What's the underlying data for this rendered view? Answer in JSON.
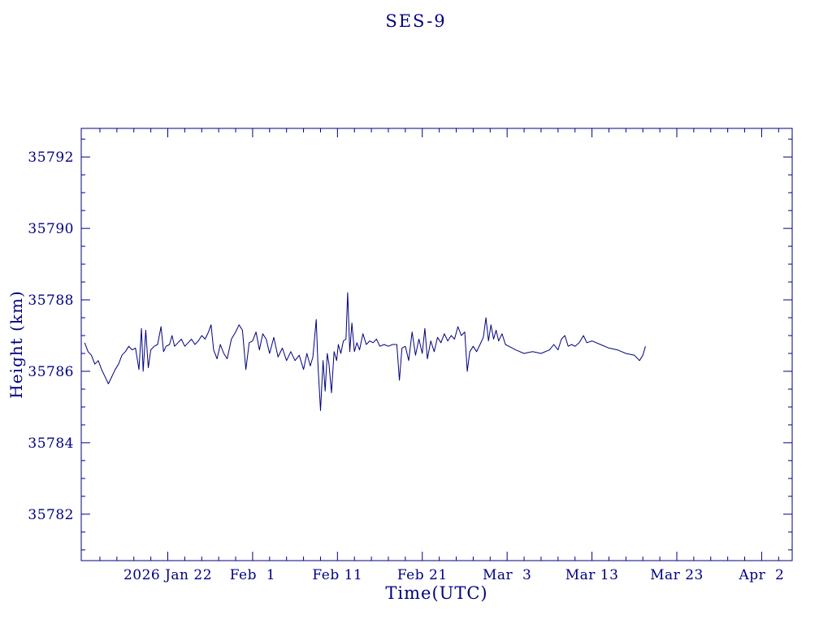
{
  "page": {
    "background": "#ffffff"
  },
  "chart_data": {
    "type": "line",
    "title": "SES-9",
    "xlabel": "Time(UTC)",
    "ylabel": "Height (km)",
    "axis_color": "#000080",
    "grid": false,
    "legend": "none",
    "x_axis_note": "x values are days; day 10 = 2026 Jan 22, major ticks every 10 days",
    "xlim": [
      -0.2,
      83.6
    ],
    "ylim": [
      35780.7,
      35792.8
    ],
    "x_minor_step": 2,
    "y_minor_step": 0.5,
    "x_ticks": [
      {
        "d": 10,
        "label": "2026 Jan 22"
      },
      {
        "d": 20,
        "label": "Feb  1"
      },
      {
        "d": 30,
        "label": "Feb 11"
      },
      {
        "d": 40,
        "label": "Feb 21"
      },
      {
        "d": 50,
        "label": "Mar  3"
      },
      {
        "d": 60,
        "label": "Mar 13"
      },
      {
        "d": 70,
        "label": "Mar 23"
      },
      {
        "d": 80,
        "label": "Apr  2"
      }
    ],
    "y_ticks": [
      {
        "v": 35782,
        "label": "35782"
      },
      {
        "v": 35784,
        "label": "35784"
      },
      {
        "v": 35786,
        "label": "35786"
      },
      {
        "v": 35788,
        "label": "35788"
      },
      {
        "v": 35790,
        "label": "35790"
      },
      {
        "v": 35792,
        "label": "35792"
      }
    ],
    "series": [
      {
        "name": "height",
        "color": "#000080",
        "points": [
          [
            0.2,
            35786.8
          ],
          [
            0.6,
            35786.55
          ],
          [
            1.0,
            35786.45
          ],
          [
            1.4,
            35786.2
          ],
          [
            1.8,
            35786.3
          ],
          [
            2.2,
            35786.05
          ],
          [
            2.6,
            35785.85
          ],
          [
            3.0,
            35785.65
          ],
          [
            3.4,
            35785.85
          ],
          [
            3.8,
            35786.05
          ],
          [
            4.2,
            35786.2
          ],
          [
            4.6,
            35786.45
          ],
          [
            5.0,
            35786.55
          ],
          [
            5.4,
            35786.7
          ],
          [
            5.8,
            35786.6
          ],
          [
            6.2,
            35786.65
          ],
          [
            6.6,
            35786.05
          ],
          [
            6.9,
            35787.2
          ],
          [
            7.1,
            35786.0
          ],
          [
            7.4,
            35787.15
          ],
          [
            7.7,
            35786.1
          ],
          [
            8.0,
            35786.6
          ],
          [
            8.4,
            35786.7
          ],
          [
            8.8,
            35786.75
          ],
          [
            9.2,
            35787.25
          ],
          [
            9.5,
            35786.55
          ],
          [
            9.8,
            35786.7
          ],
          [
            10.2,
            35786.75
          ],
          [
            10.5,
            35787.0
          ],
          [
            10.8,
            35786.7
          ],
          [
            11.2,
            35786.8
          ],
          [
            11.6,
            35786.9
          ],
          [
            12.0,
            35786.7
          ],
          [
            12.4,
            35786.8
          ],
          [
            12.8,
            35786.9
          ],
          [
            13.2,
            35786.75
          ],
          [
            13.6,
            35786.85
          ],
          [
            14.0,
            35787.0
          ],
          [
            14.4,
            35786.9
          ],
          [
            14.8,
            35787.1
          ],
          [
            15.1,
            35787.3
          ],
          [
            15.4,
            35786.6
          ],
          [
            15.8,
            35786.35
          ],
          [
            16.2,
            35786.75
          ],
          [
            16.6,
            35786.5
          ],
          [
            17.0,
            35786.35
          ],
          [
            17.5,
            35786.9
          ],
          [
            18.0,
            35787.1
          ],
          [
            18.4,
            35787.3
          ],
          [
            18.8,
            35787.15
          ],
          [
            19.2,
            35786.05
          ],
          [
            19.6,
            35786.8
          ],
          [
            20.0,
            35786.85
          ],
          [
            20.4,
            35787.1
          ],
          [
            20.8,
            35786.6
          ],
          [
            21.2,
            35787.05
          ],
          [
            21.6,
            35786.9
          ],
          [
            22.0,
            35786.5
          ],
          [
            22.5,
            35786.95
          ],
          [
            23.0,
            35786.4
          ],
          [
            23.5,
            35786.65
          ],
          [
            24.0,
            35786.3
          ],
          [
            24.5,
            35786.55
          ],
          [
            25.0,
            35786.3
          ],
          [
            25.5,
            35786.45
          ],
          [
            26.0,
            35786.05
          ],
          [
            26.4,
            35786.5
          ],
          [
            26.8,
            35786.15
          ],
          [
            27.1,
            35786.4
          ],
          [
            27.5,
            35787.45
          ],
          [
            27.7,
            35786.2
          ],
          [
            28.0,
            35784.9
          ],
          [
            28.3,
            35786.3
          ],
          [
            28.55,
            35785.45
          ],
          [
            28.8,
            35786.5
          ],
          [
            29.0,
            35786.2
          ],
          [
            29.3,
            35785.4
          ],
          [
            29.6,
            35786.55
          ],
          [
            29.9,
            35786.3
          ],
          [
            30.1,
            35786.75
          ],
          [
            30.4,
            35786.5
          ],
          [
            30.7,
            35786.85
          ],
          [
            31.0,
            35786.9
          ],
          [
            31.2,
            35788.2
          ],
          [
            31.45,
            35786.55
          ],
          [
            31.7,
            35787.35
          ],
          [
            32.0,
            35786.55
          ],
          [
            32.3,
            35786.8
          ],
          [
            32.6,
            35786.6
          ],
          [
            33.0,
            35787.05
          ],
          [
            33.4,
            35786.75
          ],
          [
            33.8,
            35786.85
          ],
          [
            34.2,
            35786.8
          ],
          [
            34.6,
            35786.9
          ],
          [
            35.0,
            35786.7
          ],
          [
            35.5,
            35786.75
          ],
          [
            36.0,
            35786.7
          ],
          [
            36.5,
            35786.75
          ],
          [
            37.0,
            35786.75
          ],
          [
            37.3,
            35785.75
          ],
          [
            37.6,
            35786.65
          ],
          [
            38.0,
            35786.7
          ],
          [
            38.4,
            35786.3
          ],
          [
            38.8,
            35787.1
          ],
          [
            39.2,
            35786.45
          ],
          [
            39.6,
            35786.9
          ],
          [
            40.0,
            35786.5
          ],
          [
            40.3,
            35787.2
          ],
          [
            40.6,
            35786.35
          ],
          [
            41.0,
            35786.85
          ],
          [
            41.4,
            35786.55
          ],
          [
            41.8,
            35786.95
          ],
          [
            42.2,
            35786.8
          ],
          [
            42.6,
            35787.05
          ],
          [
            43.0,
            35786.85
          ],
          [
            43.4,
            35787.0
          ],
          [
            43.8,
            35786.9
          ],
          [
            44.2,
            35787.25
          ],
          [
            44.6,
            35787.0
          ],
          [
            45.0,
            35787.1
          ],
          [
            45.3,
            35786.0
          ],
          [
            45.6,
            35786.55
          ],
          [
            46.0,
            35786.7
          ],
          [
            46.4,
            35786.55
          ],
          [
            46.8,
            35786.75
          ],
          [
            47.2,
            35786.95
          ],
          [
            47.5,
            35787.5
          ],
          [
            47.8,
            35786.85
          ],
          [
            48.1,
            35787.3
          ],
          [
            48.4,
            35786.9
          ],
          [
            48.7,
            35787.15
          ],
          [
            49.0,
            35786.85
          ],
          [
            49.4,
            35787.05
          ],
          [
            49.8,
            35786.75
          ],
          [
            50.2,
            35786.7
          ],
          [
            51.0,
            35786.6
          ],
          [
            52.0,
            35786.5
          ],
          [
            53.0,
            35786.55
          ],
          [
            54.0,
            35786.5
          ],
          [
            55.0,
            35786.6
          ],
          [
            55.5,
            35786.75
          ],
          [
            56.0,
            35786.6
          ],
          [
            56.4,
            35786.9
          ],
          [
            56.8,
            35787.0
          ],
          [
            57.2,
            35786.7
          ],
          [
            57.6,
            35786.75
          ],
          [
            58.0,
            35786.7
          ],
          [
            58.5,
            35786.8
          ],
          [
            59.0,
            35787.0
          ],
          [
            59.4,
            35786.8
          ],
          [
            60.0,
            35786.85
          ],
          [
            61.0,
            35786.75
          ],
          [
            62.0,
            35786.65
          ],
          [
            63.0,
            35786.6
          ],
          [
            64.0,
            35786.5
          ],
          [
            65.0,
            35786.45
          ],
          [
            65.6,
            35786.3
          ],
          [
            66.0,
            35786.45
          ],
          [
            66.3,
            35786.7
          ]
        ]
      }
    ]
  }
}
